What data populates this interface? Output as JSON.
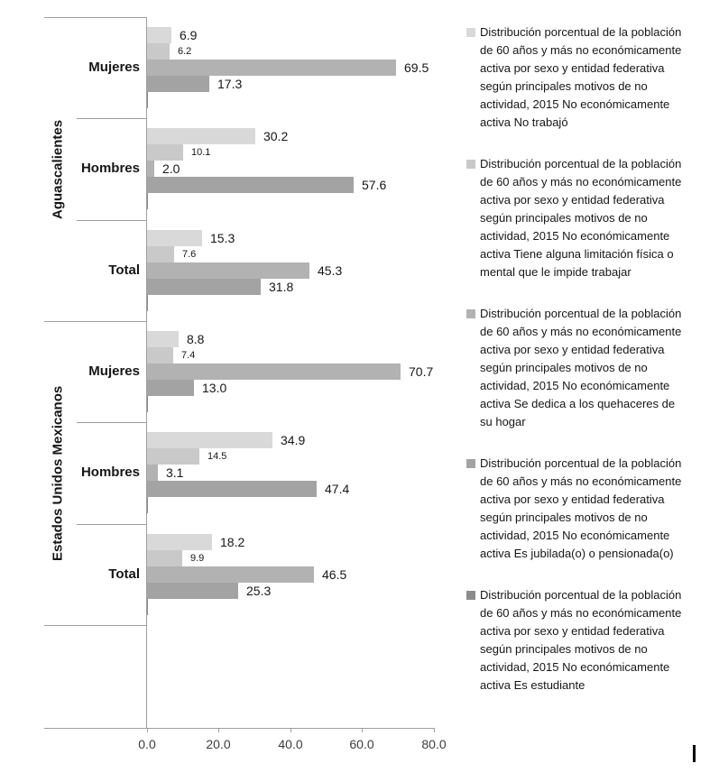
{
  "chart_data": {
    "type": "bar",
    "orientation": "horizontal",
    "title": "",
    "grid": false,
    "legend_position": "right",
    "value_axis": {
      "min": 0,
      "max": 80,
      "ticks": [
        0,
        20,
        40,
        60,
        80
      ],
      "tick_labels": [
        "0.0",
        "20.0",
        "40.0",
        "60.0",
        "80.0"
      ]
    },
    "entity_labels": [
      "Aguascalientes",
      "Estados Unidos Mexicanos"
    ],
    "groups": [
      {
        "key": "ags-mujeres",
        "entity": "Aguascalientes",
        "label": "Mujeres"
      },
      {
        "key": "ags-hombres",
        "entity": "Aguascalientes",
        "label": "Hombres"
      },
      {
        "key": "ags-total",
        "entity": "Aguascalientes",
        "label": "Total"
      },
      {
        "key": "eum-mujeres",
        "entity": "Estados Unidos Mexicanos",
        "label": "Mujeres"
      },
      {
        "key": "eum-hombres",
        "entity": "Estados Unidos Mexicanos",
        "label": "Hombres"
      },
      {
        "key": "eum-total",
        "entity": "Estados Unidos Mexicanos",
        "label": "Total"
      }
    ],
    "series": [
      {
        "key": "no-trabajo",
        "short_name": "No trabajó",
        "color": "#D9D9D9",
        "values": [
          6.9,
          30.2,
          15.3,
          8.8,
          34.9,
          18.2
        ],
        "show_labels": true,
        "label_size": "large",
        "legend_label": "Distribución porcentual de la población de 60 años y más no económicamente activa  por sexo y entidad federativa según principales motivos de no actividad, 2015 No económicamente activa No trabajó"
      },
      {
        "key": "limitacion",
        "short_name": "Tiene alguna limitación física o mental que le impide trabajar",
        "color": "#C9C9C9",
        "values": [
          6.2,
          10.1,
          7.6,
          7.4,
          14.5,
          9.9
        ],
        "show_labels": true,
        "label_size": "small",
        "legend_label": "Distribución porcentual de la población de 60 años y más no económicamente activa  por sexo y entidad federativa según principales motivos de no actividad, 2015 No económicamente activa Tiene alguna limitación física o mental que le impide trabajar"
      },
      {
        "key": "quehaceres",
        "short_name": "Se dedica a los quehaceres de su hogar",
        "color": "#B2B2B2",
        "values": [
          69.5,
          2.0,
          45.3,
          70.7,
          3.1,
          46.5
        ],
        "show_labels": true,
        "label_size": "large",
        "legend_label": "Distribución porcentual de la población de 60 años y más no económicamente activa  por sexo y entidad federativa según principales motivos de no actividad, 2015 No económicamente activa Se dedica a los quehaceres de su hogar"
      },
      {
        "key": "jubilado",
        "short_name": "Es jubilada(o) o pensionada(o)",
        "color": "#A3A3A3",
        "values": [
          17.3,
          57.6,
          31.8,
          13.0,
          47.4,
          25.3
        ],
        "show_labels": true,
        "label_size": "large",
        "legend_label": "Distribución porcentual de la población de 60 años y más no económicamente activa  por sexo y entidad federativa según principales motivos de no actividad, 2015 No económicamente activa Es jubilada(o) o pensionada(o)"
      },
      {
        "key": "estudiante",
        "short_name": "Es estudiante",
        "color": "#8C8C8C",
        "values": [
          0.3,
          0.3,
          0.3,
          0.3,
          0.3,
          0.3
        ],
        "values_estimated_from_pixels": true,
        "show_labels": false,
        "label_size": "large",
        "legend_label": "Distribución porcentual de la población de 60 años y más no económicamente activa  por sexo y entidad federativa según principales motivos de no actividad, 2015 No económicamente activa Es estudiante"
      }
    ]
  },
  "artifacts": {
    "bottom_right_mark": "vertical-bar-caret"
  }
}
